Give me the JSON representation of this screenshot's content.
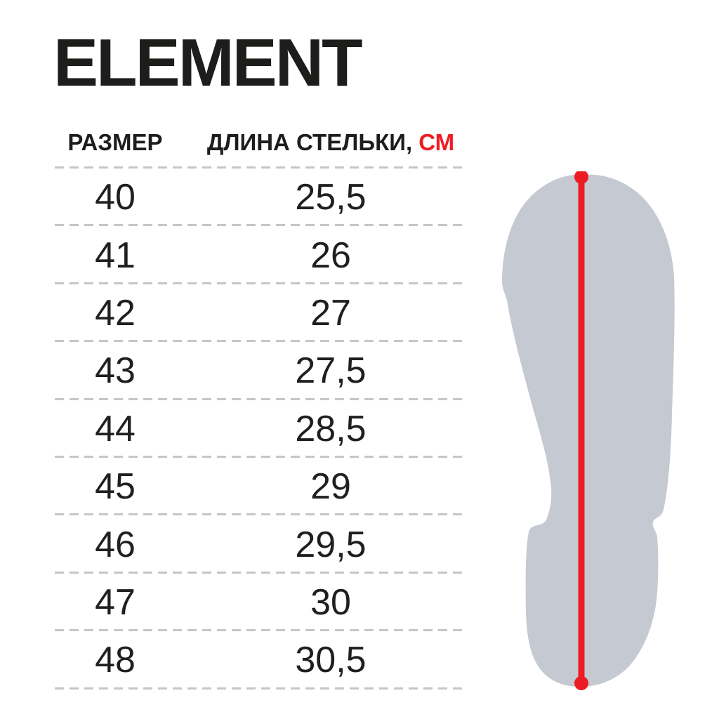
{
  "title": "ELEMENT",
  "table": {
    "headers": {
      "size": "РАЗМЕР",
      "length_prefix": "ДЛИНА СТЕЛЬКИ, ",
      "length_unit": "СМ"
    },
    "rows": [
      {
        "size": "40",
        "length": "25,5"
      },
      {
        "size": "41",
        "length": "26"
      },
      {
        "size": "42",
        "length": "27"
      },
      {
        "size": "43",
        "length": "27,5"
      },
      {
        "size": "44",
        "length": "28,5"
      },
      {
        "size": "45",
        "length": "29"
      },
      {
        "size": "46",
        "length": "29,5"
      },
      {
        "size": "47",
        "length": "30"
      },
      {
        "size": "48",
        "length": "30,5"
      }
    ]
  },
  "figure": {
    "name": "insole-length-diagram",
    "fill_color": "#c5c9d1",
    "line_color": "#ed1c24"
  },
  "colors": {
    "text": "#1d1d1b",
    "accent_red": "#ed1c24",
    "divider": "#c6c6c8",
    "background": "#ffffff"
  }
}
